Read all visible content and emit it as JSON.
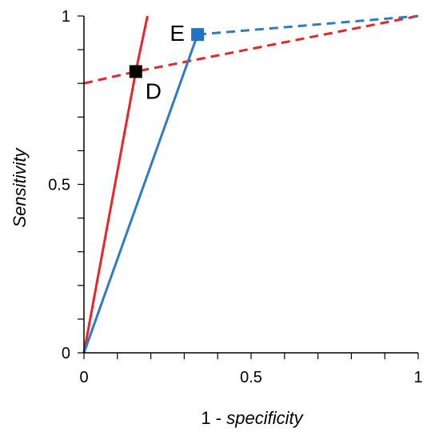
{
  "chart_data": {
    "type": "line",
    "xlabel_prefix": "1 - ",
    "xlabel_emphasis": "specificity",
    "ylabel": "Sensitivity",
    "xlim": [
      0,
      1
    ],
    "ylim": [
      0,
      1
    ],
    "x_ticks": [
      0,
      0.5,
      1
    ],
    "y_ticks": [
      0,
      0.5,
      1
    ],
    "x_tick_labels": [
      "0",
      "0.5",
      "1"
    ],
    "y_tick_labels": [
      "0",
      "0.5",
      "1"
    ],
    "x_minor_tick_step": 0.1,
    "y_minor_tick_step": 0.1,
    "grid": false,
    "series": [
      {
        "key": "d-solid",
        "color": "#e8262a",
        "style": "solid",
        "points": [
          [
            0,
            0
          ],
          [
            0.155,
            0.835
          ],
          [
            0.19,
            1.0
          ]
        ]
      },
      {
        "key": "d-dashed",
        "color": "#e8262a",
        "style": "dashed",
        "points": [
          [
            0,
            0.8
          ],
          [
            0.155,
            0.835
          ],
          [
            1,
            1
          ]
        ]
      },
      {
        "key": "e-solid",
        "color": "#2f7cc0",
        "style": "solid",
        "points": [
          [
            0,
            0
          ],
          [
            0.34,
            0.945
          ]
        ]
      },
      {
        "key": "e-dashed",
        "color": "#2f7cc0",
        "style": "dashed",
        "points": [
          [
            0.34,
            0.945
          ],
          [
            1,
            1
          ]
        ]
      }
    ],
    "points": [
      {
        "label": "D",
        "x": 0.155,
        "y": 0.835,
        "color": "#000000",
        "label_position": "below-right"
      },
      {
        "label": "E",
        "x": 0.34,
        "y": 0.945,
        "color": "#1f72c4",
        "label_position": "left"
      }
    ]
  }
}
